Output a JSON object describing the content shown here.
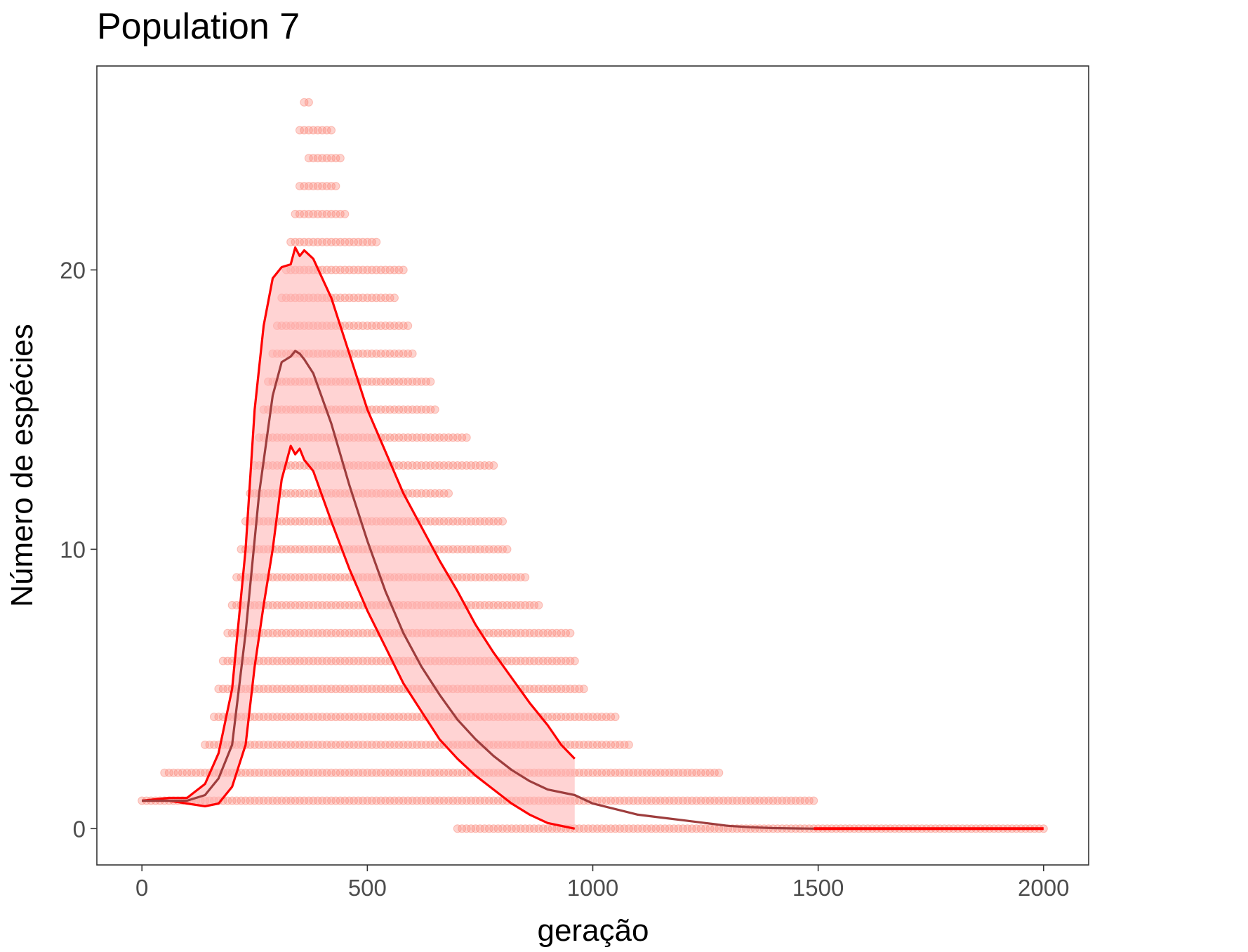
{
  "chart_data": {
    "type": "scatter",
    "title": "Population 7",
    "xlabel": "geração",
    "ylabel": "Número de espécies",
    "xlim": [
      -100,
      2100
    ],
    "ylim": [
      -1.3,
      27.3
    ],
    "xticks": [
      0,
      500,
      1000,
      1500,
      2000
    ],
    "yticks": [
      0,
      10,
      20
    ],
    "grid": false,
    "legend": "none",
    "colors": {
      "points": "#fa8072",
      "band_fill": "#ffb6b6",
      "band_edge": "#ff0000",
      "mean_line": "#9e3d3d",
      "axis_frame": "#333333"
    },
    "series": [
      {
        "kind": "points",
        "description_of_range": "each row = one species-count value with the generation span over which runs were observed",
        "rows": [
          {
            "y": 0,
            "x": [
              700,
              2000
            ]
          },
          {
            "y": 1,
            "x": [
              0,
              1490
            ]
          },
          {
            "y": 2,
            "x": [
              50,
              1280
            ]
          },
          {
            "y": 3,
            "x": [
              140,
              1080
            ]
          },
          {
            "y": 4,
            "x": [
              160,
              1050
            ]
          },
          {
            "y": 5,
            "x": [
              170,
              980
            ]
          },
          {
            "y": 6,
            "x": [
              180,
              960
            ]
          },
          {
            "y": 7,
            "x": [
              190,
              950
            ]
          },
          {
            "y": 8,
            "x": [
              200,
              880
            ]
          },
          {
            "y": 9,
            "x": [
              210,
              850
            ]
          },
          {
            "y": 10,
            "x": [
              220,
              810
            ]
          },
          {
            "y": 11,
            "x": [
              230,
              800
            ]
          },
          {
            "y": 12,
            "x": [
              240,
              680
            ]
          },
          {
            "y": 13,
            "x": [
              250,
              780
            ]
          },
          {
            "y": 14,
            "x": [
              260,
              720
            ]
          },
          {
            "y": 15,
            "x": [
              270,
              650
            ]
          },
          {
            "y": 16,
            "x": [
              280,
              640
            ]
          },
          {
            "y": 17,
            "x": [
              290,
              600
            ]
          },
          {
            "y": 18,
            "x": [
              300,
              590
            ]
          },
          {
            "y": 19,
            "x": [
              310,
              560
            ]
          },
          {
            "y": 20,
            "x": [
              320,
              580
            ]
          },
          {
            "y": 21,
            "x": [
              330,
              520
            ]
          },
          {
            "y": 22,
            "x": [
              340,
              450
            ]
          },
          {
            "y": 23,
            "x": [
              350,
              430
            ]
          },
          {
            "y": 24,
            "x": [
              370,
              440
            ]
          },
          {
            "y": 25,
            "x": [
              350,
              420
            ]
          },
          {
            "y": 26,
            "x": [
              360,
              370
            ]
          }
        ]
      },
      {
        "kind": "upper_band",
        "x": [
          0,
          60,
          100,
          140,
          170,
          200,
          230,
          250,
          270,
          290,
          310,
          330,
          340,
          350,
          360,
          380,
          420,
          460,
          500,
          540,
          580,
          620,
          660,
          700,
          740,
          780,
          820,
          860,
          900,
          930,
          960
        ],
        "y": [
          1,
          1.1,
          1.1,
          1.6,
          2.7,
          5,
          10,
          15,
          18,
          19.7,
          20.1,
          20.2,
          20.8,
          20.5,
          20.7,
          20.4,
          19,
          17,
          15,
          13.5,
          12,
          10.8,
          9.6,
          8.5,
          7.3,
          6.3,
          5.4,
          4.5,
          3.7,
          3.0,
          2.5
        ]
      },
      {
        "kind": "lower_band",
        "x": [
          0,
          60,
          100,
          140,
          170,
          200,
          230,
          250,
          270,
          290,
          310,
          330,
          340,
          350,
          360,
          380,
          420,
          460,
          500,
          540,
          580,
          620,
          660,
          700,
          740,
          780,
          820,
          860,
          900,
          930,
          960
        ],
        "y": [
          1,
          1,
          0.9,
          0.8,
          0.9,
          1.5,
          3,
          5.8,
          8,
          10,
          12.5,
          13.7,
          13.4,
          13.6,
          13.2,
          12.8,
          11,
          9.3,
          7.8,
          6.5,
          5.2,
          4.2,
          3.2,
          2.5,
          1.9,
          1.4,
          0.9,
          0.5,
          0.2,
          0.1,
          0
        ]
      },
      {
        "kind": "mean_line",
        "x": [
          0,
          60,
          100,
          140,
          170,
          200,
          230,
          260,
          290,
          310,
          330,
          340,
          350,
          360,
          380,
          420,
          460,
          500,
          540,
          580,
          620,
          660,
          700,
          740,
          780,
          820,
          860,
          900,
          960,
          1000,
          1050,
          1100,
          1150,
          1200,
          1250,
          1300,
          1350,
          1400,
          1490
        ],
        "y": [
          1,
          1,
          1,
          1.2,
          1.8,
          3,
          7,
          12,
          15.5,
          16.7,
          16.9,
          17.1,
          17,
          16.8,
          16.3,
          14.5,
          12.3,
          10.3,
          8.5,
          7.0,
          5.8,
          4.8,
          3.9,
          3.2,
          2.6,
          2.1,
          1.7,
          1.4,
          1.2,
          0.9,
          0.7,
          0.5,
          0.4,
          0.3,
          0.2,
          0.1,
          0.05,
          0.02,
          0
        ]
      },
      {
        "kind": "tail_line",
        "x": [
          1490,
          2000
        ],
        "y": [
          0,
          0
        ]
      }
    ]
  }
}
